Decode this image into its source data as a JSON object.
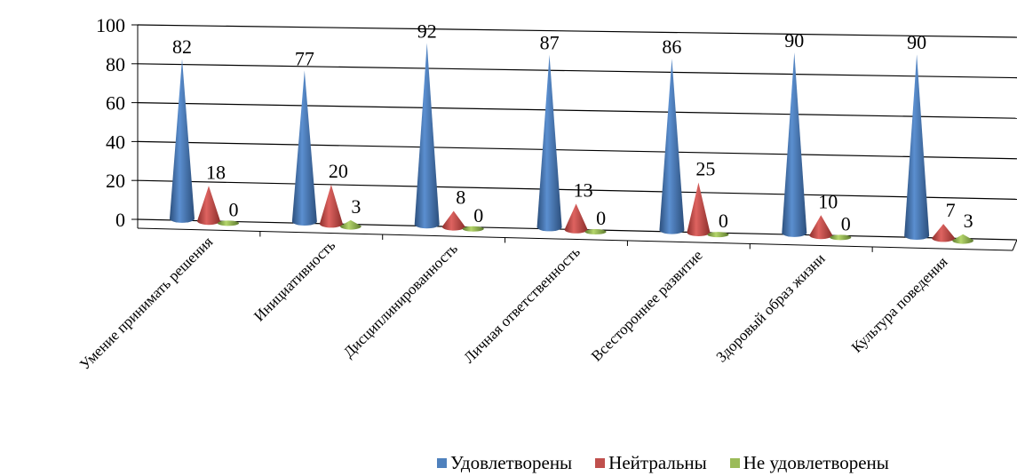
{
  "chart_data": {
    "type": "bar",
    "style": "3d-cone",
    "categories": [
      "Умение принимать решения",
      "Инициативность",
      "Дисциплинированность",
      "Личная ответственность",
      "Всестороннее развитие",
      "Здоровый образ жизни",
      "Культура поведения"
    ],
    "series": [
      {
        "name": "Удовлетворены",
        "color": "#4F81BD",
        "values": [
          82,
          77,
          92,
          87,
          86,
          90,
          90
        ]
      },
      {
        "name": "Нейтральны",
        "color": "#C0504D",
        "values": [
          18,
          20,
          8,
          13,
          25,
          10,
          7
        ]
      },
      {
        "name": "Не удовлетворены",
        "color": "#9BBB59",
        "values": [
          0,
          3,
          0,
          0,
          0,
          0,
          3
        ]
      }
    ],
    "ylim": [
      0,
      100
    ],
    "yticks": [
      "0",
      "20",
      "40",
      "60",
      "80",
      "100"
    ],
    "grid": true,
    "legend_position": "bottom"
  }
}
